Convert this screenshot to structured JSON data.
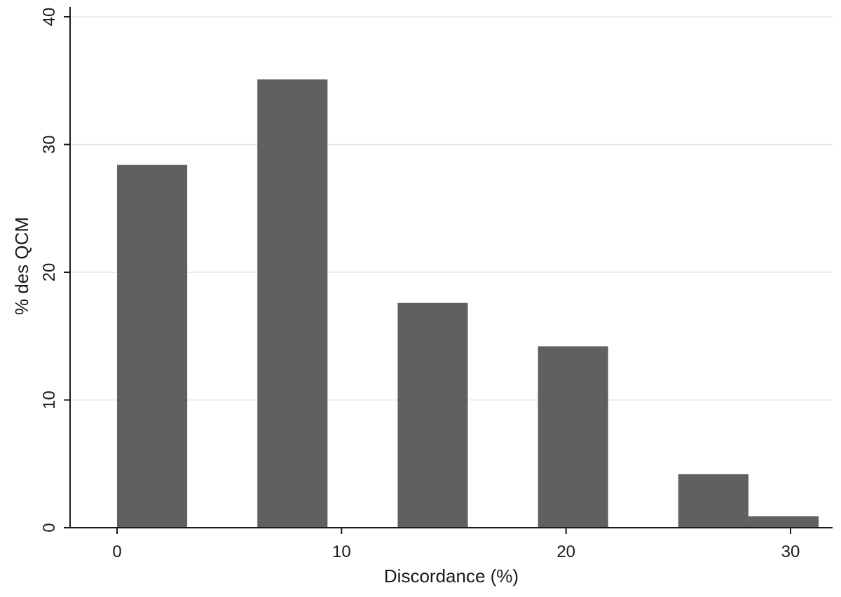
{
  "chart_data": {
    "type": "bar",
    "xlabel": "Discordance (%)",
    "ylabel": "% des QCM",
    "xlim": [
      -2,
      31.4
    ],
    "ylim": [
      0,
      40
    ],
    "xticks": [
      0,
      10,
      20,
      30
    ],
    "yticks": [
      0,
      10,
      20,
      30,
      40
    ],
    "grid": true,
    "bins": [
      {
        "x0": 0,
        "x1": 3.125,
        "value": 28.4
      },
      {
        "x0": 6.25,
        "x1": 9.375,
        "value": 35.1
      },
      {
        "x0": 12.5,
        "x1": 15.625,
        "value": 17.6
      },
      {
        "x0": 18.75,
        "x1": 21.875,
        "value": 14.2
      },
      {
        "x0": 25,
        "x1": 28.125,
        "value": 4.2
      },
      {
        "x0": 28.125,
        "x1": 31.25,
        "value": 0.9
      }
    ],
    "bar_color": "#606060"
  }
}
